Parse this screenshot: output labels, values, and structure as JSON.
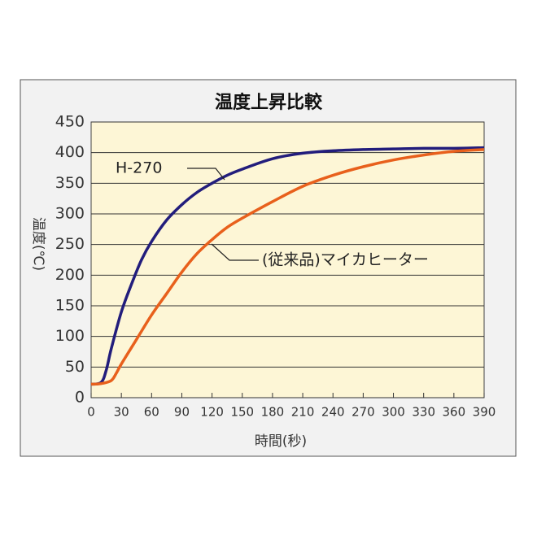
{
  "chart_data": {
    "type": "line",
    "title": "温度上昇比較",
    "x_label": "時間(秒)",
    "y_label": "温度(℃)",
    "xlim": [
      0,
      390
    ],
    "ylim": [
      0,
      450
    ],
    "xticks": [
      0,
      30,
      60,
      90,
      120,
      150,
      180,
      210,
      240,
      270,
      300,
      330,
      360,
      390
    ],
    "yticks": [
      0,
      50,
      100,
      150,
      200,
      250,
      300,
      350,
      400,
      450
    ],
    "grid": true,
    "series": [
      {
        "name": "H-270",
        "color": "#221d7c",
        "x": [
          0,
          10,
          15,
          20,
          30,
          40,
          50,
          60,
          75,
          90,
          105,
          120,
          135,
          150,
          180,
          210,
          240,
          270,
          300,
          330,
          360,
          390
        ],
        "values": [
          22,
          25,
          45,
          80,
          140,
          185,
          225,
          255,
          290,
          315,
          335,
          350,
          363,
          373,
          390,
          399,
          403,
          405,
          406,
          407,
          407,
          408
        ]
      },
      {
        "name": "(従来品)マイカヒーター",
        "color": "#e8601c",
        "x": [
          0,
          10,
          20,
          25,
          30,
          45,
          60,
          75,
          90,
          105,
          120,
          135,
          150,
          180,
          210,
          240,
          270,
          300,
          330,
          360,
          390
        ],
        "values": [
          22,
          23,
          28,
          40,
          55,
          95,
          135,
          170,
          205,
          235,
          258,
          278,
          293,
          320,
          345,
          363,
          377,
          388,
          396,
          402,
          405
        ]
      }
    ]
  }
}
